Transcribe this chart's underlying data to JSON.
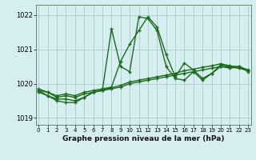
{
  "title": "Graphe pression niveau de la mer (hPa)",
  "background_color": "#d6eef0",
  "grid_color": "#b0d0d4",
  "line_color": "#1a6b1a",
  "ylim": [
    1018.8,
    1022.3
  ],
  "yticks": [
    1019,
    1020,
    1021,
    1022
  ],
  "xlim": [
    -0.3,
    23.3
  ],
  "xticks": [
    0,
    1,
    2,
    3,
    4,
    5,
    6,
    7,
    8,
    9,
    10,
    11,
    12,
    13,
    14,
    15,
    16,
    17,
    18,
    19,
    20,
    21,
    22,
    23
  ],
  "s1": [
    1019.85,
    1019.75,
    1019.65,
    1019.7,
    1019.65,
    1019.75,
    1019.8,
    1019.85,
    1019.9,
    1020.65,
    1021.15,
    1021.55,
    1021.95,
    1021.65,
    1020.85,
    1020.2,
    1020.6,
    1020.4,
    1020.15,
    1020.3,
    1020.55,
    1020.5,
    1020.5,
    1020.4
  ],
  "s2": [
    1019.8,
    1019.65,
    1019.55,
    1019.55,
    1019.5,
    1019.6,
    1019.75,
    1019.8,
    1021.6,
    1020.5,
    1020.35,
    1021.95,
    1021.9,
    1021.55,
    1020.5,
    1020.15,
    1020.1,
    1020.35,
    1020.1,
    1020.3,
    1020.5,
    1020.45,
    1020.5,
    1020.35
  ],
  "s3": [
    1019.75,
    1019.65,
    1019.5,
    1019.45,
    1019.45,
    1019.6,
    1019.75,
    1019.8,
    1019.85,
    1019.9,
    1020.0,
    1020.05,
    1020.1,
    1020.15,
    1020.2,
    1020.25,
    1020.3,
    1020.35,
    1020.4,
    1020.45,
    1020.5,
    1020.48,
    1020.45,
    1020.38
  ],
  "s4": [
    1019.8,
    1019.75,
    1019.6,
    1019.65,
    1019.6,
    1019.7,
    1019.75,
    1019.82,
    1019.88,
    1019.95,
    1020.05,
    1020.1,
    1020.15,
    1020.2,
    1020.25,
    1020.3,
    1020.38,
    1020.42,
    1020.48,
    1020.52,
    1020.58,
    1020.52,
    1020.48,
    1020.38
  ]
}
